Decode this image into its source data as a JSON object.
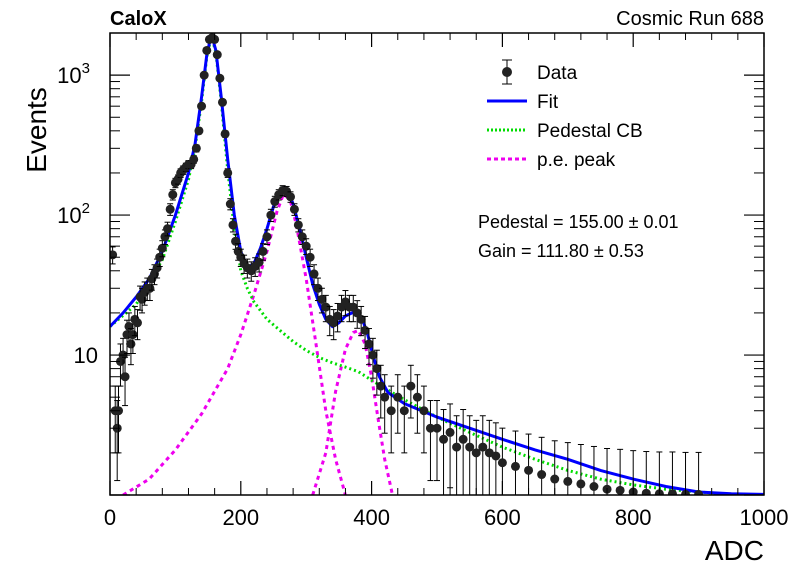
{
  "chart_data": {
    "type": "scatter",
    "experiment_label": "CaloX",
    "run_label": "Cosmic Run 688",
    "xlabel": "ADC",
    "ylabel": "Events",
    "xlim": [
      0,
      1000
    ],
    "ylim": [
      1,
      2000
    ],
    "yscale": "log",
    "x_ticks": [
      0,
      200,
      400,
      600,
      800,
      1000
    ],
    "x_tick_labels": [
      "0",
      "200",
      "400",
      "600",
      "800",
      "1000"
    ],
    "y_major_ticks": [
      10,
      100,
      1000
    ],
    "y_tick_labels": [
      {
        "value": 10,
        "base": "10",
        "exp": ""
      },
      {
        "value": 100,
        "base": "10",
        "exp": "2"
      },
      {
        "value": 1000,
        "base": "10",
        "exp": "3"
      }
    ],
    "legend": {
      "placement": "top-right",
      "entries": [
        {
          "label": "Data",
          "style": "marker",
          "color": "#000000"
        },
        {
          "label": "Fit",
          "style": "solid",
          "color": "#0000ff"
        },
        {
          "label": "Pedestal CB",
          "style": "dotted",
          "color": "#00dd00"
        },
        {
          "label": "p.e. peak",
          "style": "dashed",
          "color": "#ee00ee"
        }
      ]
    },
    "annotations": [
      {
        "text": "Pedestal = 155.00 ± 0.01"
      },
      {
        "text": "Gain = 111.80 ± 0.53"
      }
    ],
    "fit_parameters": {
      "pedestal": 155.0,
      "pedestal_err": 0.01,
      "gain": 111.8,
      "gain_err": 0.53
    },
    "series": [
      {
        "name": "Data",
        "style": "markers-with-error-bars",
        "color": "#000000",
        "points": [
          [
            4,
            52
          ],
          [
            8,
            4
          ],
          [
            11,
            3
          ],
          [
            13,
            4
          ],
          [
            16,
            9
          ],
          [
            20,
            10
          ],
          [
            23,
            7
          ],
          [
            26,
            14
          ],
          [
            29,
            16
          ],
          [
            32,
            12
          ],
          [
            35,
            14
          ],
          [
            38,
            18
          ],
          [
            42,
            17
          ],
          [
            46,
            26
          ],
          [
            49,
            25
          ],
          [
            53,
            28
          ],
          [
            57,
            30
          ],
          [
            61,
            30
          ],
          [
            64,
            35
          ],
          [
            68,
            38
          ],
          [
            72,
            42
          ],
          [
            76,
            50
          ],
          [
            80,
            58
          ],
          [
            84,
            70
          ],
          [
            88,
            80
          ],
          [
            92,
            110
          ],
          [
            96,
            140
          ],
          [
            100,
            170
          ],
          [
            104,
            180
          ],
          [
            108,
            200
          ],
          [
            112,
            210
          ],
          [
            116,
            220
          ],
          [
            120,
            230
          ],
          [
            124,
            230
          ],
          [
            128,
            250
          ],
          [
            132,
            300
          ],
          [
            136,
            400
          ],
          [
            140,
            600
          ],
          [
            144,
            1000
          ],
          [
            148,
            1500
          ],
          [
            152,
            1800
          ],
          [
            156,
            1850
          ],
          [
            160,
            1800
          ],
          [
            164,
            1400
          ],
          [
            168,
            950
          ],
          [
            172,
            640
          ],
          [
            176,
            380
          ],
          [
            180,
            200
          ],
          [
            184,
            120
          ],
          [
            188,
            85
          ],
          [
            192,
            65
          ],
          [
            196,
            55
          ],
          [
            200,
            50
          ],
          [
            205,
            45
          ],
          [
            210,
            42
          ],
          [
            216,
            40
          ],
          [
            222,
            43
          ],
          [
            228,
            46
          ],
          [
            234,
            55
          ],
          [
            240,
            70
          ],
          [
            246,
            100
          ],
          [
            252,
            125
          ],
          [
            258,
            140
          ],
          [
            264,
            150
          ],
          [
            270,
            148
          ],
          [
            276,
            135
          ],
          [
            282,
            110
          ],
          [
            288,
            85
          ],
          [
            294,
            70
          ],
          [
            300,
            60
          ],
          [
            306,
            50
          ],
          [
            312,
            38
          ],
          [
            318,
            30
          ],
          [
            324,
            25
          ],
          [
            330,
            22
          ],
          [
            336,
            18
          ],
          [
            342,
            17
          ],
          [
            348,
            19
          ],
          [
            354,
            22
          ],
          [
            360,
            24
          ],
          [
            366,
            22
          ],
          [
            372,
            22
          ],
          [
            378,
            20
          ],
          [
            384,
            18
          ],
          [
            390,
            15
          ],
          [
            396,
            12
          ],
          [
            402,
            10
          ],
          [
            408,
            8
          ],
          [
            414,
            6
          ],
          [
            420,
            5
          ],
          [
            430,
            4
          ],
          [
            440,
            5
          ],
          [
            450,
            4
          ],
          [
            460,
            6
          ],
          [
            470,
            5
          ],
          [
            480,
            4
          ],
          [
            490,
            3
          ],
          [
            500,
            3
          ],
          [
            510,
            2.5
          ],
          [
            520,
            2.8
          ],
          [
            530,
            2.2
          ],
          [
            540,
            2.5
          ],
          [
            550,
            2.2
          ],
          [
            560,
            2.0
          ],
          [
            570,
            2.2
          ],
          [
            580,
            2.0
          ],
          [
            590,
            1.9
          ],
          [
            600,
            1.7
          ],
          [
            620,
            1.6
          ],
          [
            640,
            1.5
          ],
          [
            660,
            1.4
          ],
          [
            680,
            1.3
          ],
          [
            700,
            1.25
          ],
          [
            720,
            1.2
          ],
          [
            740,
            1.15
          ],
          [
            760,
            1.1
          ],
          [
            780,
            1.08
          ],
          [
            800,
            1.05
          ],
          [
            820,
            1.03
          ],
          [
            840,
            1.02
          ],
          [
            860,
            1.02
          ],
          [
            880,
            1.01
          ],
          [
            900,
            1.01
          ]
        ]
      },
      {
        "name": "Fit",
        "style": "solid",
        "color": "#0000ff",
        "points": [
          [
            0,
            16
          ],
          [
            20,
            20
          ],
          [
            40,
            26
          ],
          [
            60,
            35
          ],
          [
            80,
            55
          ],
          [
            100,
            100
          ],
          [
            120,
            200
          ],
          [
            130,
            320
          ],
          [
            140,
            700
          ],
          [
            148,
            1400
          ],
          [
            155,
            1950
          ],
          [
            162,
            1500
          ],
          [
            170,
            700
          ],
          [
            180,
            250
          ],
          [
            190,
            100
          ],
          [
            200,
            55
          ],
          [
            210,
            42
          ],
          [
            220,
            45
          ],
          [
            230,
            58
          ],
          [
            240,
            80
          ],
          [
            250,
            115
          ],
          [
            258,
            145
          ],
          [
            265,
            158
          ],
          [
            272,
            150
          ],
          [
            280,
            120
          ],
          [
            290,
            80
          ],
          [
            300,
            50
          ],
          [
            310,
            32
          ],
          [
            320,
            23
          ],
          [
            330,
            18
          ],
          [
            340,
            16
          ],
          [
            350,
            17
          ],
          [
            360,
            19
          ],
          [
            370,
            20
          ],
          [
            378,
            20
          ],
          [
            386,
            18
          ],
          [
            394,
            14
          ],
          [
            402,
            10
          ],
          [
            412,
            7
          ],
          [
            425,
            5.4
          ],
          [
            450,
            4.5
          ],
          [
            500,
            3.6
          ],
          [
            550,
            3.0
          ],
          [
            600,
            2.5
          ],
          [
            650,
            2.1
          ],
          [
            700,
            1.8
          ],
          [
            750,
            1.5
          ],
          [
            800,
            1.3
          ],
          [
            850,
            1.15
          ],
          [
            900,
            1.05
          ],
          [
            950,
            1.02
          ],
          [
            1000,
            1.01
          ]
        ]
      },
      {
        "name": "Pedestal CB",
        "style": "dotted",
        "color": "#00dd00",
        "points": [
          [
            0,
            16
          ],
          [
            40,
            23
          ],
          [
            80,
            48
          ],
          [
            100,
            90
          ],
          [
            120,
            180
          ],
          [
            130,
            300
          ],
          [
            140,
            650
          ],
          [
            148,
            1350
          ],
          [
            155,
            1900
          ],
          [
            162,
            1450
          ],
          [
            170,
            650
          ],
          [
            180,
            210
          ],
          [
            190,
            80
          ],
          [
            200,
            40
          ],
          [
            210,
            30
          ],
          [
            220,
            24
          ],
          [
            240,
            18
          ],
          [
            260,
            15
          ],
          [
            280,
            12.5
          ],
          [
            300,
            10.8
          ],
          [
            320,
            9.6
          ],
          [
            340,
            8.8
          ],
          [
            360,
            8.2
          ],
          [
            380,
            7.6
          ],
          [
            400,
            6.6
          ],
          [
            420,
            5.8
          ],
          [
            450,
            4.8
          ],
          [
            500,
            3.6
          ],
          [
            550,
            2.8
          ],
          [
            600,
            2.2
          ],
          [
            650,
            1.8
          ],
          [
            700,
            1.5
          ],
          [
            750,
            1.3
          ],
          [
            800,
            1.18
          ],
          [
            850,
            1.1
          ],
          [
            900,
            1.05
          ],
          [
            950,
            1.01
          ]
        ]
      },
      {
        "name": "p.e. peak",
        "style": "dashed",
        "color": "#ee00ee",
        "points": [
          [
            20,
            1.0
          ],
          [
            60,
            1.3
          ],
          [
            100,
            2.1
          ],
          [
            140,
            3.8
          ],
          [
            180,
            8
          ],
          [
            200,
            14
          ],
          [
            220,
            27
          ],
          [
            240,
            55
          ],
          [
            255,
            105
          ],
          [
            265,
            140
          ],
          [
            275,
            130
          ],
          [
            285,
            85
          ],
          [
            300,
            35
          ],
          [
            315,
            12
          ],
          [
            330,
            4
          ],
          [
            345,
            1.8
          ],
          [
            360,
            1.0
          ],
          [
            310,
            1.0
          ],
          [
            330,
            2.0
          ],
          [
            345,
            5.5
          ],
          [
            360,
            11
          ],
          [
            372,
            14.5
          ],
          [
            380,
            15
          ],
          [
            390,
            12
          ],
          [
            400,
            7
          ],
          [
            410,
            3.5
          ],
          [
            420,
            1.8
          ],
          [
            432,
            1.0
          ]
        ]
      }
    ]
  }
}
